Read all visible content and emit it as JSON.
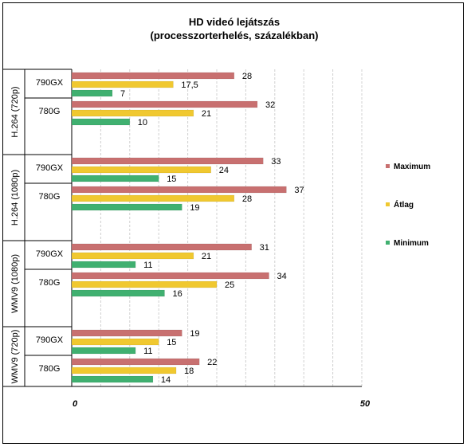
{
  "chart_data": {
    "type": "bar",
    "orientation": "horizontal",
    "title": "HD videó lejátszás",
    "subtitle": "(processzorterhelés,  százalékban)",
    "xlim": [
      0,
      50
    ],
    "x_ticks": [
      "0",
      "50"
    ],
    "grid": true,
    "legend_position": "right",
    "groups": [
      {
        "label": "H.264 (720p)",
        "rows": [
          "790GX",
          "780G"
        ]
      },
      {
        "label": "H.264 (1080p)",
        "rows": [
          "790GX",
          "780G"
        ]
      },
      {
        "label": "WMV9 (1080p)",
        "rows": [
          "790GX",
          "780G"
        ]
      },
      {
        "label": "WMV9 (720p)",
        "rows": [
          "790GX",
          "780G"
        ]
      }
    ],
    "categories": [
      "H.264 (720p) 790GX",
      "H.264 (720p) 780G",
      "H.264 (1080p) 790GX",
      "H.264 (1080p) 780G",
      "WMV9 (1080p) 790GX",
      "WMV9 (1080p) 780G",
      "WMV9 (720p) 790GX",
      "WMV9 (720p) 780G"
    ],
    "series": [
      {
        "name": "Maximum",
        "color": "#c87070",
        "values": [
          28,
          32,
          33,
          37,
          31,
          34,
          19,
          22
        ],
        "labels": [
          "28",
          "32",
          "33",
          "37",
          "31",
          "34",
          "19",
          "22"
        ]
      },
      {
        "name": "Átlag",
        "color": "#f0c830",
        "values": [
          17.5,
          21,
          24,
          28,
          21,
          25,
          15,
          18
        ],
        "labels": [
          "17,5",
          "21",
          "24",
          "28",
          "21",
          "25",
          "15",
          "18"
        ]
      },
      {
        "name": "Minimum",
        "color": "#40b070",
        "values": [
          7,
          10,
          15,
          19,
          11,
          16,
          11,
          14
        ],
        "labels": [
          "7",
          "10",
          "15",
          "19",
          "11",
          "16",
          "11",
          "14"
        ]
      }
    ]
  }
}
